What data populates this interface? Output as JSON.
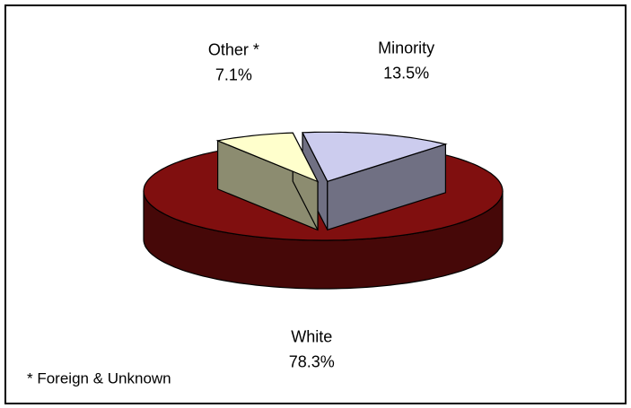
{
  "chart_data": {
    "type": "pie3d",
    "categories": [
      "Minority",
      "White",
      "Other *"
    ],
    "values": [
      13.5,
      78.3,
      7.1
    ],
    "value_labels": [
      "13.5%",
      "78.3%",
      "7.1%"
    ],
    "colors": [
      "#ccccee",
      "#800f0f",
      "#ffffcc"
    ],
    "footnote": "* Foreign & Unknown"
  }
}
